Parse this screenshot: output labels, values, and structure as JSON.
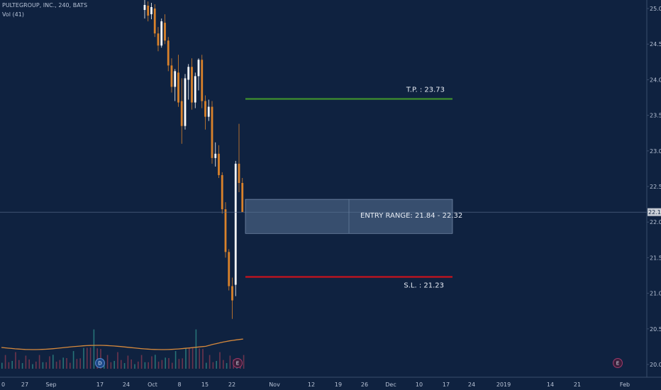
{
  "header": {
    "symbol_line": "PULTEGROUP, INC., 240, BATS",
    "volume_line": "Vol (41)"
  },
  "colors": {
    "background": "#0f2240",
    "up_candle": "#ffffff",
    "down_candle": "#d9822b",
    "tp_line": "#3f8f2e",
    "sl_line": "#c8121d",
    "entry_zone": "#5a7394"
  },
  "chart_data": {
    "type": "candlestick",
    "title": "PULTEGROUP, INC., 240, BATS",
    "price_axis": {
      "ticks": [
        "25.00",
        "24.50",
        "24.00",
        "23.50",
        "23.00",
        "22.50",
        "22.00",
        "21.50",
        "21.00",
        "20.50",
        "20.00"
      ],
      "range": [
        19.96,
        25.08
      ],
      "last_price": "22.14"
    },
    "time_axis": {
      "labels": [
        "0",
        "27",
        "Sep",
        "17",
        "24",
        "Oct",
        "8",
        "15",
        "22",
        "Nov",
        "12",
        "19",
        "26",
        "Dec",
        "10",
        "17",
        "24",
        "2019",
        "14",
        "21",
        "Feb"
      ]
    },
    "candles": [
      {
        "o": 24.98,
        "h": 25.12,
        "l": 24.86,
        "c": 25.05
      },
      {
        "o": 25.04,
        "h": 25.1,
        "l": 24.82,
        "c": 24.9
      },
      {
        "o": 24.92,
        "h": 25.08,
        "l": 24.85,
        "c": 25.02
      },
      {
        "o": 25.0,
        "h": 25.06,
        "l": 24.6,
        "c": 24.65
      },
      {
        "o": 24.65,
        "h": 24.74,
        "l": 24.4,
        "c": 24.48
      },
      {
        "o": 24.48,
        "h": 24.86,
        "l": 24.45,
        "c": 24.82
      },
      {
        "o": 24.8,
        "h": 24.92,
        "l": 24.5,
        "c": 24.55
      },
      {
        "o": 24.55,
        "h": 24.6,
        "l": 24.12,
        "c": 24.2
      },
      {
        "o": 24.2,
        "h": 24.3,
        "l": 23.82,
        "c": 23.9
      },
      {
        "o": 23.9,
        "h": 24.15,
        "l": 23.7,
        "c": 24.12
      },
      {
        "o": 24.1,
        "h": 24.35,
        "l": 23.62,
        "c": 23.68
      },
      {
        "o": 23.7,
        "h": 24.02,
        "l": 23.1,
        "c": 23.35
      },
      {
        "o": 23.35,
        "h": 24.08,
        "l": 23.3,
        "c": 24.02
      },
      {
        "o": 24.0,
        "h": 24.22,
        "l": 23.72,
        "c": 24.18
      },
      {
        "o": 24.18,
        "h": 24.3,
        "l": 23.58,
        "c": 23.68
      },
      {
        "o": 23.68,
        "h": 24.1,
        "l": 23.6,
        "c": 24.05
      },
      {
        "o": 24.05,
        "h": 24.3,
        "l": 23.85,
        "c": 24.28
      },
      {
        "o": 24.28,
        "h": 24.35,
        "l": 23.6,
        "c": 23.7
      },
      {
        "o": 23.7,
        "h": 23.78,
        "l": 23.3,
        "c": 23.48
      },
      {
        "o": 23.48,
        "h": 23.72,
        "l": 23.42,
        "c": 23.62
      },
      {
        "o": 23.62,
        "h": 23.7,
        "l": 22.82,
        "c": 22.9
      },
      {
        "o": 22.9,
        "h": 23.12,
        "l": 22.78,
        "c": 22.96
      },
      {
        "o": 22.96,
        "h": 23.08,
        "l": 22.62,
        "c": 22.66
      },
      {
        "o": 22.66,
        "h": 22.7,
        "l": 22.12,
        "c": 22.18
      },
      {
        "o": 22.18,
        "h": 22.28,
        "l": 21.5,
        "c": 21.58
      },
      {
        "o": 21.58,
        "h": 21.62,
        "l": 21.04,
        "c": 21.1
      },
      {
        "o": 21.1,
        "h": 21.22,
        "l": 20.64,
        "c": 20.9
      },
      {
        "o": 21.12,
        "h": 22.86,
        "l": 20.96,
        "c": 22.82
      },
      {
        "o": 22.82,
        "h": 23.38,
        "l": 22.42,
        "c": 22.55
      },
      {
        "o": 22.55,
        "h": 22.62,
        "l": 22.14,
        "c": 22.14
      }
    ],
    "volume_bars": [
      0.5,
      0.7,
      0.4,
      0.6,
      0.8,
      0.5,
      0.4,
      0.6,
      0.5,
      0.3,
      0.6,
      0.7,
      0.4,
      0.5,
      0.6,
      0.8,
      0.5,
      0.4,
      0.6,
      0.7,
      0.5,
      0.9,
      0.6,
      0.8,
      1.0,
      1.2,
      1.5,
      1.8,
      1.1,
      1.3
    ],
    "levels": {
      "take_profit": {
        "value": 23.73,
        "label": "T.P. : 23.73"
      },
      "stop_loss": {
        "value": 21.23,
        "label": "S.L. : 21.23"
      },
      "entry_range": {
        "low": 21.84,
        "high": 22.32,
        "label": "ENTRY RANGE: 21.84 - 22.32"
      }
    },
    "event_markers": [
      "D",
      "E",
      "E"
    ]
  }
}
